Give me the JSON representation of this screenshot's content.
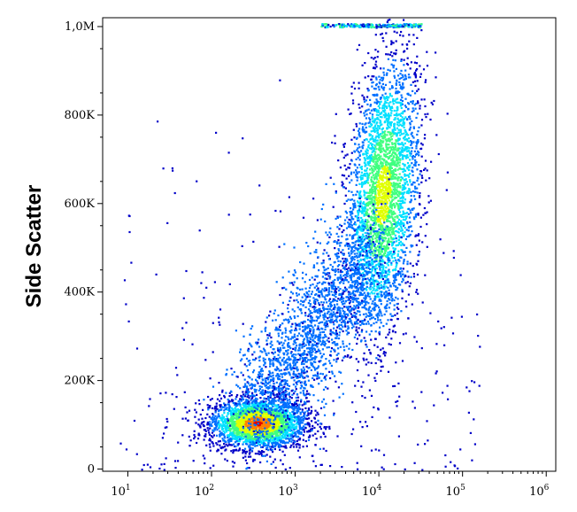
{
  "chart_data": {
    "type": "scatter",
    "title": "",
    "xlabel": "",
    "ylabel": "Side Scatter",
    "x_scale": "log",
    "xlim": [
      5,
      1300000
    ],
    "ylim": [
      -5000,
      1020000
    ],
    "x_ticks": [
      {
        "value": 10,
        "base": "10",
        "exp": "1"
      },
      {
        "value": 100,
        "base": "10",
        "exp": "2"
      },
      {
        "value": 1000,
        "base": "10",
        "exp": "3"
      },
      {
        "value": 10000,
        "base": "10",
        "exp": "4"
      },
      {
        "value": 100000,
        "base": "10",
        "exp": "5"
      },
      {
        "value": 1000000,
        "base": "10",
        "exp": "6"
      }
    ],
    "y_ticks": [
      {
        "value": 0,
        "label": "0"
      },
      {
        "value": 200000,
        "label": "200K"
      },
      {
        "value": 400000,
        "label": "400K"
      },
      {
        "value": 600000,
        "label": "600K"
      },
      {
        "value": 800000,
        "label": "800K"
      },
      {
        "value": 1000000,
        "label": "1,0M"
      }
    ],
    "density_colormap": [
      "#0000c8",
      "#0070ff",
      "#00e0ff",
      "#40ff80",
      "#e0ff00",
      "#ff8000",
      "#e00000"
    ],
    "populations": [
      {
        "x_center": 350,
        "y_center": 105000,
        "x_spread_decades": 0.18,
        "y_spread": 22000,
        "relative_count": 1.0,
        "peak_color": "#e00000"
      },
      {
        "x_center": 11000,
        "y_center": 620000,
        "x_spread_decades": 0.14,
        "y_spread": 110000,
        "relative_count": 1.1,
        "peak_color": "#e0ff00"
      }
    ],
    "grid": false,
    "legend": "none"
  }
}
